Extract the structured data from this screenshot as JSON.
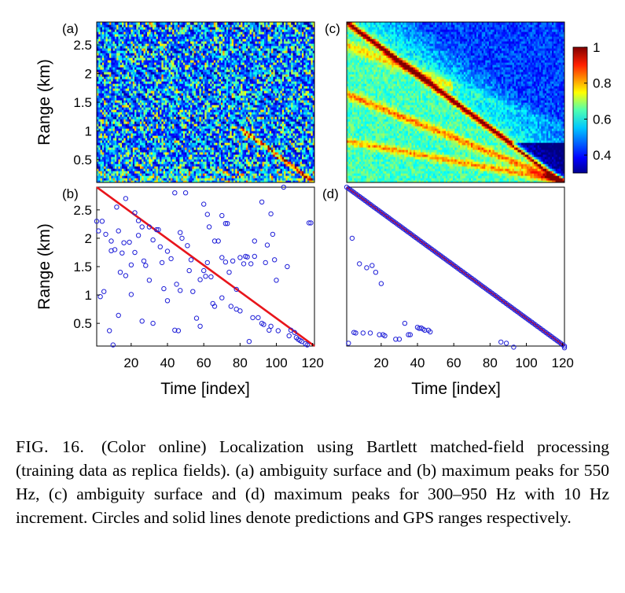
{
  "figure": {
    "caption_label": "FIG. 16.",
    "caption_text": "(Color online) Localization using Bartlett matched-field processing (training data as replica fields). (a) ambiguity surface and (b) maximum peaks for 550 Hz, (c) ambiguity surface and (d) maximum peaks for 300–950 Hz with 10 Hz increment. Circles and solid lines denote predictions and GPS ranges respectively."
  },
  "colors": {
    "marker": "#1f1fd8",
    "gps_line": "#e8151b"
  },
  "chart_data": [
    {
      "type": "heatmap",
      "panel_label": "(a)",
      "ylabel": "Range (km)",
      "xlabel": "",
      "xlim": [
        1,
        121
      ],
      "ylim": [
        0.1,
        2.9
      ],
      "yticks": [
        "0.5",
        "1",
        "1.5",
        "2",
        "2.5"
      ],
      "ytick_values": [
        0.5,
        1,
        1.5,
        2,
        2.5
      ],
      "xticks": [],
      "colormap": "jet",
      "pattern": "noisy, weak diagonal near end"
    },
    {
      "type": "heatmap",
      "panel_label": "(c)",
      "ylabel": "",
      "xlabel": "",
      "xlim": [
        1,
        121
      ],
      "ylim": [
        0.1,
        2.9
      ],
      "yticks": [],
      "xticks": [],
      "colormap": "jet",
      "pattern": "strong diagonal track from 2.9 km to 0.1 km with side lobes",
      "colorbar": {
        "ticks": [
          "0.4",
          "0.6",
          "0.8",
          "1"
        ],
        "tick_values": [
          0.4,
          0.6,
          0.8,
          1.0
        ],
        "range": [
          0.3,
          1.0
        ]
      }
    },
    {
      "type": "scatter",
      "panel_label": "(b)",
      "ylabel": "Range (km)",
      "xlabel": "Time [index]",
      "xlim": [
        1,
        121
      ],
      "ylim": [
        0.1,
        2.9
      ],
      "xticks": [
        "20",
        "40",
        "60",
        "80",
        "100",
        "120"
      ],
      "xtick_values": [
        20,
        40,
        60,
        80,
        100,
        120
      ],
      "yticks": [
        "0.5",
        "1",
        "1.5",
        "2",
        "2.5"
      ],
      "ytick_values": [
        0.5,
        1,
        1.5,
        2,
        2.5
      ],
      "gps_line": {
        "x": [
          1,
          121
        ],
        "y": [
          2.9,
          0.1
        ]
      },
      "points": [
        [
          1,
          2.3
        ],
        [
          2,
          2.13
        ],
        [
          3,
          0.97
        ],
        [
          4,
          2.3
        ],
        [
          5,
          1.06
        ],
        [
          6,
          2.07
        ],
        [
          8,
          0.37
        ],
        [
          9,
          1.95
        ],
        [
          9,
          1.78
        ],
        [
          10,
          0.12
        ],
        [
          11,
          1.8
        ],
        [
          12,
          2.55
        ],
        [
          13,
          2.13
        ],
        [
          13,
          0.64
        ],
        [
          14,
          1.4
        ],
        [
          15,
          1.74
        ],
        [
          16,
          1.92
        ],
        [
          17,
          1.34
        ],
        [
          17,
          2.7
        ],
        [
          19,
          1.93
        ],
        [
          20,
          1.01
        ],
        [
          20,
          1.53
        ],
        [
          22,
          2.45
        ],
        [
          22,
          1.75
        ],
        [
          24,
          2.31
        ],
        [
          24,
          2.05
        ],
        [
          26,
          2.2
        ],
        [
          26,
          0.54
        ],
        [
          27,
          1.6
        ],
        [
          28,
          1.52
        ],
        [
          30,
          2.2
        ],
        [
          30,
          1.26
        ],
        [
          32,
          1.97
        ],
        [
          32,
          0.5
        ],
        [
          34,
          2.15
        ],
        [
          35,
          2.15
        ],
        [
          36,
          1.85
        ],
        [
          37,
          1.57
        ],
        [
          38,
          1.11
        ],
        [
          40,
          1.77
        ],
        [
          40,
          0.9
        ],
        [
          42,
          1.64
        ],
        [
          44,
          2.8
        ],
        [
          44,
          0.38
        ],
        [
          45,
          1.19
        ],
        [
          46,
          0.37
        ],
        [
          47,
          2.1
        ],
        [
          47,
          1.08
        ],
        [
          48,
          2.0
        ],
        [
          50,
          2.8
        ],
        [
          51,
          1.87
        ],
        [
          52,
          1.43
        ],
        [
          53,
          1.62
        ],
        [
          54,
          1.06
        ],
        [
          56,
          0.59
        ],
        [
          58,
          0.45
        ],
        [
          58,
          1.27
        ],
        [
          60,
          2.6
        ],
        [
          60,
          1.43
        ],
        [
          61,
          1.33
        ],
        [
          62,
          1.57
        ],
        [
          62,
          2.42
        ],
        [
          63,
          2.2
        ],
        [
          64,
          1.32
        ],
        [
          65,
          0.85
        ],
        [
          66,
          0.8
        ],
        [
          66,
          1.95
        ],
        [
          68,
          1.95
        ],
        [
          70,
          2.4
        ],
        [
          70,
          1.66
        ],
        [
          72,
          1.58
        ],
        [
          72,
          2.26
        ],
        [
          73,
          2.26
        ],
        [
          74,
          1.4
        ],
        [
          76,
          1.6
        ],
        [
          78,
          1.1
        ],
        [
          78,
          0.75
        ],
        [
          80,
          0.72
        ],
        [
          80,
          1.66
        ],
        [
          82,
          1.55
        ],
        [
          83,
          1.68
        ],
        [
          84,
          1.67
        ],
        [
          85,
          0.18
        ],
        [
          86,
          1.55
        ],
        [
          88,
          1.68
        ],
        [
          88,
          1.95
        ],
        [
          90,
          0.6
        ],
        [
          92,
          2.64
        ],
        [
          92,
          0.5
        ],
        [
          94,
          1.57
        ],
        [
          95,
          1.88
        ],
        [
          97,
          2.43
        ],
        [
          97,
          0.45
        ],
        [
          98,
          2.07
        ],
        [
          99,
          1.62
        ],
        [
          100,
          1.26
        ],
        [
          101,
          0.37
        ],
        [
          104,
          2.9
        ],
        [
          106,
          1.5
        ],
        [
          107,
          0.28
        ],
        [
          108,
          0.38
        ],
        [
          110,
          0.34
        ],
        [
          111,
          0.25
        ],
        [
          112,
          0.22
        ],
        [
          113,
          0.2
        ],
        [
          114,
          0.18
        ],
        [
          116,
          0.14
        ],
        [
          117,
          0.12
        ],
        [
          118,
          2.27
        ],
        [
          119,
          2.27
        ],
        [
          96,
          0.38
        ],
        [
          93,
          0.48
        ],
        [
          75,
          0.8
        ],
        [
          70,
          0.95
        ],
        [
          87,
          0.6
        ]
      ]
    },
    {
      "type": "scatter",
      "panel_label": "(d)",
      "ylabel": "",
      "xlabel": "Time [index]",
      "xlim": [
        1,
        121
      ],
      "ylim": [
        0.1,
        2.9
      ],
      "xticks": [
        "20",
        "40",
        "60",
        "80",
        "100",
        "120"
      ],
      "xtick_values": [
        20,
        40,
        60,
        80,
        100,
        120
      ],
      "yticks": [],
      "gps_line": {
        "x": [
          1,
          121
        ],
        "y": [
          2.9,
          0.1
        ]
      },
      "track_points_every": 1,
      "points": [
        [
          2,
          0.15
        ],
        [
          4,
          2.0
        ],
        [
          5,
          0.34
        ],
        [
          6,
          0.33
        ],
        [
          8,
          1.55
        ],
        [
          10,
          0.33
        ],
        [
          12,
          1.48
        ],
        [
          14,
          0.33
        ],
        [
          15,
          1.52
        ],
        [
          17,
          1.4
        ],
        [
          19,
          0.3
        ],
        [
          20,
          1.2
        ],
        [
          21,
          0.3
        ],
        [
          22,
          0.28
        ],
        [
          28,
          0.22
        ],
        [
          30,
          0.22
        ],
        [
          33,
          0.5
        ],
        [
          35,
          0.3
        ],
        [
          36,
          0.3
        ],
        [
          40,
          0.43
        ],
        [
          41,
          0.41
        ],
        [
          42,
          0.42
        ],
        [
          43,
          0.4
        ],
        [
          44,
          0.38
        ],
        [
          46,
          0.38
        ],
        [
          47,
          0.35
        ],
        [
          86,
          0.17
        ],
        [
          89,
          0.15
        ],
        [
          93,
          0.08
        ],
        [
          121,
          0.07
        ]
      ]
    }
  ]
}
